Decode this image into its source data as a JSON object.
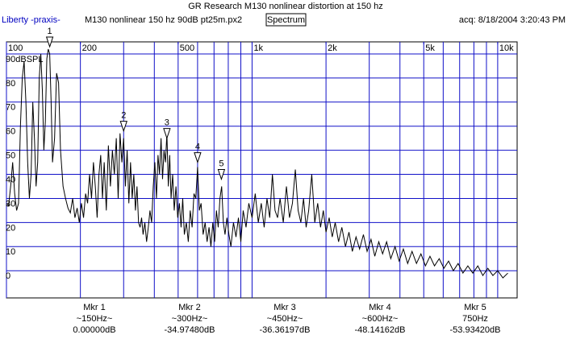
{
  "chart_data": {
    "type": "line",
    "title": "GR Research M130 nonlinear distortion at 150 hz",
    "app": "Liberty -praxis-",
    "file": "M130 nonlinear 150 hz 90dB pt25m.px2",
    "view": "Spectrum",
    "acquired": "acq: 8/18/2004 3:20:43 PM",
    "log_x": true,
    "grid": true,
    "grid_color": "#1010c8",
    "color": "#000000",
    "xlim": [
      100,
      12000
    ],
    "ylim": [
      -11.3,
      95
    ],
    "xticks": [
      100,
      200,
      500,
      {
        "value": 1000,
        "label": "1k"
      },
      {
        "value": 2000,
        "label": "2k"
      },
      {
        "value": 5000,
        "label": "5k"
      },
      {
        "value": 10000,
        "label": "10k"
      }
    ],
    "xgrid": [
      100,
      200,
      300,
      400,
      500,
      600,
      700,
      800,
      900,
      1000,
      2000,
      3000,
      4000,
      5000,
      6000,
      7000,
      8000,
      9000,
      10000
    ],
    "yticks": [
      0,
      10,
      20,
      30,
      40,
      50,
      60,
      70,
      80,
      {
        "value": 90,
        "label": "90dBSPL"
      }
    ],
    "x": [
      100,
      102,
      104,
      106,
      108,
      110,
      112,
      114,
      116,
      118,
      120,
      122,
      124,
      126,
      128,
      130,
      132,
      134,
      136,
      138,
      140,
      142,
      144,
      146,
      148,
      150,
      152,
      154,
      157,
      160,
      163,
      166,
      170,
      174,
      178,
      182,
      186,
      190,
      194,
      198,
      202,
      206,
      210,
      214,
      218,
      222,
      226,
      230,
      234,
      238,
      242,
      246,
      250,
      255,
      260,
      265,
      270,
      275,
      280,
      285,
      290,
      295,
      300,
      305,
      310,
      315,
      320,
      325,
      330,
      335,
      340,
      345,
      350,
      355,
      360,
      366,
      372,
      378,
      384,
      390,
      396,
      402,
      408,
      414,
      420,
      426,
      432,
      438,
      444,
      450,
      456,
      462,
      468,
      475,
      482,
      490,
      498,
      506,
      514,
      522,
      530,
      540,
      550,
      560,
      570,
      580,
      590,
      600,
      610,
      620,
      632,
      644,
      656,
      668,
      680,
      692,
      704,
      716,
      728,
      740,
      752,
      764,
      776,
      790,
      805,
      820,
      840,
      860,
      880,
      900,
      920,
      945,
      970,
      1000,
      1030,
      1060,
      1090,
      1120,
      1150,
      1180,
      1210,
      1240,
      1270,
      1300,
      1340,
      1380,
      1420,
      1460,
      1500,
      1540,
      1580,
      1620,
      1660,
      1700,
      1750,
      1800,
      1850,
      1900,
      1950,
      2000,
      2060,
      2120,
      2180,
      2250,
      2320,
      2400,
      2480,
      2560,
      2650,
      2740,
      2840,
      2940,
      3050,
      3160,
      3280,
      3400,
      3530,
      3670,
      3820,
      3970,
      4130,
      4300,
      4480,
      4670,
      4870,
      5080,
      5300,
      5530,
      5780,
      6040,
      6310,
      6600,
      6900,
      7220,
      7560,
      7920,
      8300,
      8700,
      9120,
      9560,
      10000,
      10500,
      11000
    ],
    "values": [
      28,
      27,
      35,
      45,
      32,
      25,
      28,
      60,
      80,
      87,
      70,
      45,
      30,
      40,
      70,
      55,
      35,
      45,
      80,
      90,
      75,
      50,
      62,
      88,
      92,
      90,
      70,
      45,
      55,
      82,
      78,
      50,
      35,
      30,
      26,
      24,
      30,
      22,
      26,
      20,
      28,
      22,
      32,
      28,
      40,
      30,
      45,
      35,
      22,
      40,
      48,
      30,
      45,
      25,
      52,
      35,
      50,
      40,
      55,
      30,
      57,
      45,
      55,
      35,
      50,
      28,
      45,
      30,
      40,
      25,
      35,
      20,
      18,
      22,
      15,
      20,
      12,
      18,
      25,
      20,
      35,
      45,
      30,
      48,
      40,
      55,
      38,
      50,
      45,
      57,
      35,
      48,
      30,
      40,
      25,
      35,
      22,
      28,
      18,
      30,
      15,
      20,
      12,
      25,
      18,
      32,
      30,
      43,
      25,
      28,
      15,
      20,
      12,
      18,
      10,
      20,
      12,
      25,
      18,
      30,
      35,
      20,
      15,
      22,
      15,
      10,
      20,
      14,
      22,
      12,
      25,
      18,
      28,
      22,
      32,
      20,
      28,
      18,
      30,
      22,
      40,
      25,
      22,
      30,
      20,
      35,
      22,
      28,
      42,
      25,
      20,
      30,
      18,
      25,
      40,
      20,
      28,
      18,
      25,
      16,
      22,
      14,
      20,
      12,
      18,
      10,
      16,
      8,
      14,
      9,
      15,
      8,
      13,
      6,
      12,
      7,
      12,
      5,
      10,
      4,
      9,
      3,
      8,
      3,
      7,
      2,
      6,
      2,
      5,
      1,
      4,
      0,
      3,
      -1,
      2,
      -1,
      2,
      -2,
      1,
      -2,
      0,
      -3,
      -1
    ],
    "markers": [
      {
        "label": "1",
        "x": 150,
        "y": 93,
        "readout": [
          "Mkr 1",
          "~150Hz~",
          "0.00000dB"
        ]
      },
      {
        "label": "2",
        "x": 300,
        "y": 58,
        "readout": [
          "Mkr 2",
          "~300Hz~",
          "-34.97480dB"
        ]
      },
      {
        "label": "3",
        "x": 450,
        "y": 55,
        "readout": [
          "Mkr 3",
          "~450Hz~",
          "-36.36197dB"
        ]
      },
      {
        "label": "4",
        "x": 600,
        "y": 45,
        "readout": [
          "Mkr 4",
          "~600Hz~",
          "-48.14162dB"
        ]
      },
      {
        "label": "5",
        "x": 750,
        "y": 38,
        "readout": [
          "Mkr 5",
          "750Hz",
          "-53.93420dB"
        ]
      }
    ]
  }
}
